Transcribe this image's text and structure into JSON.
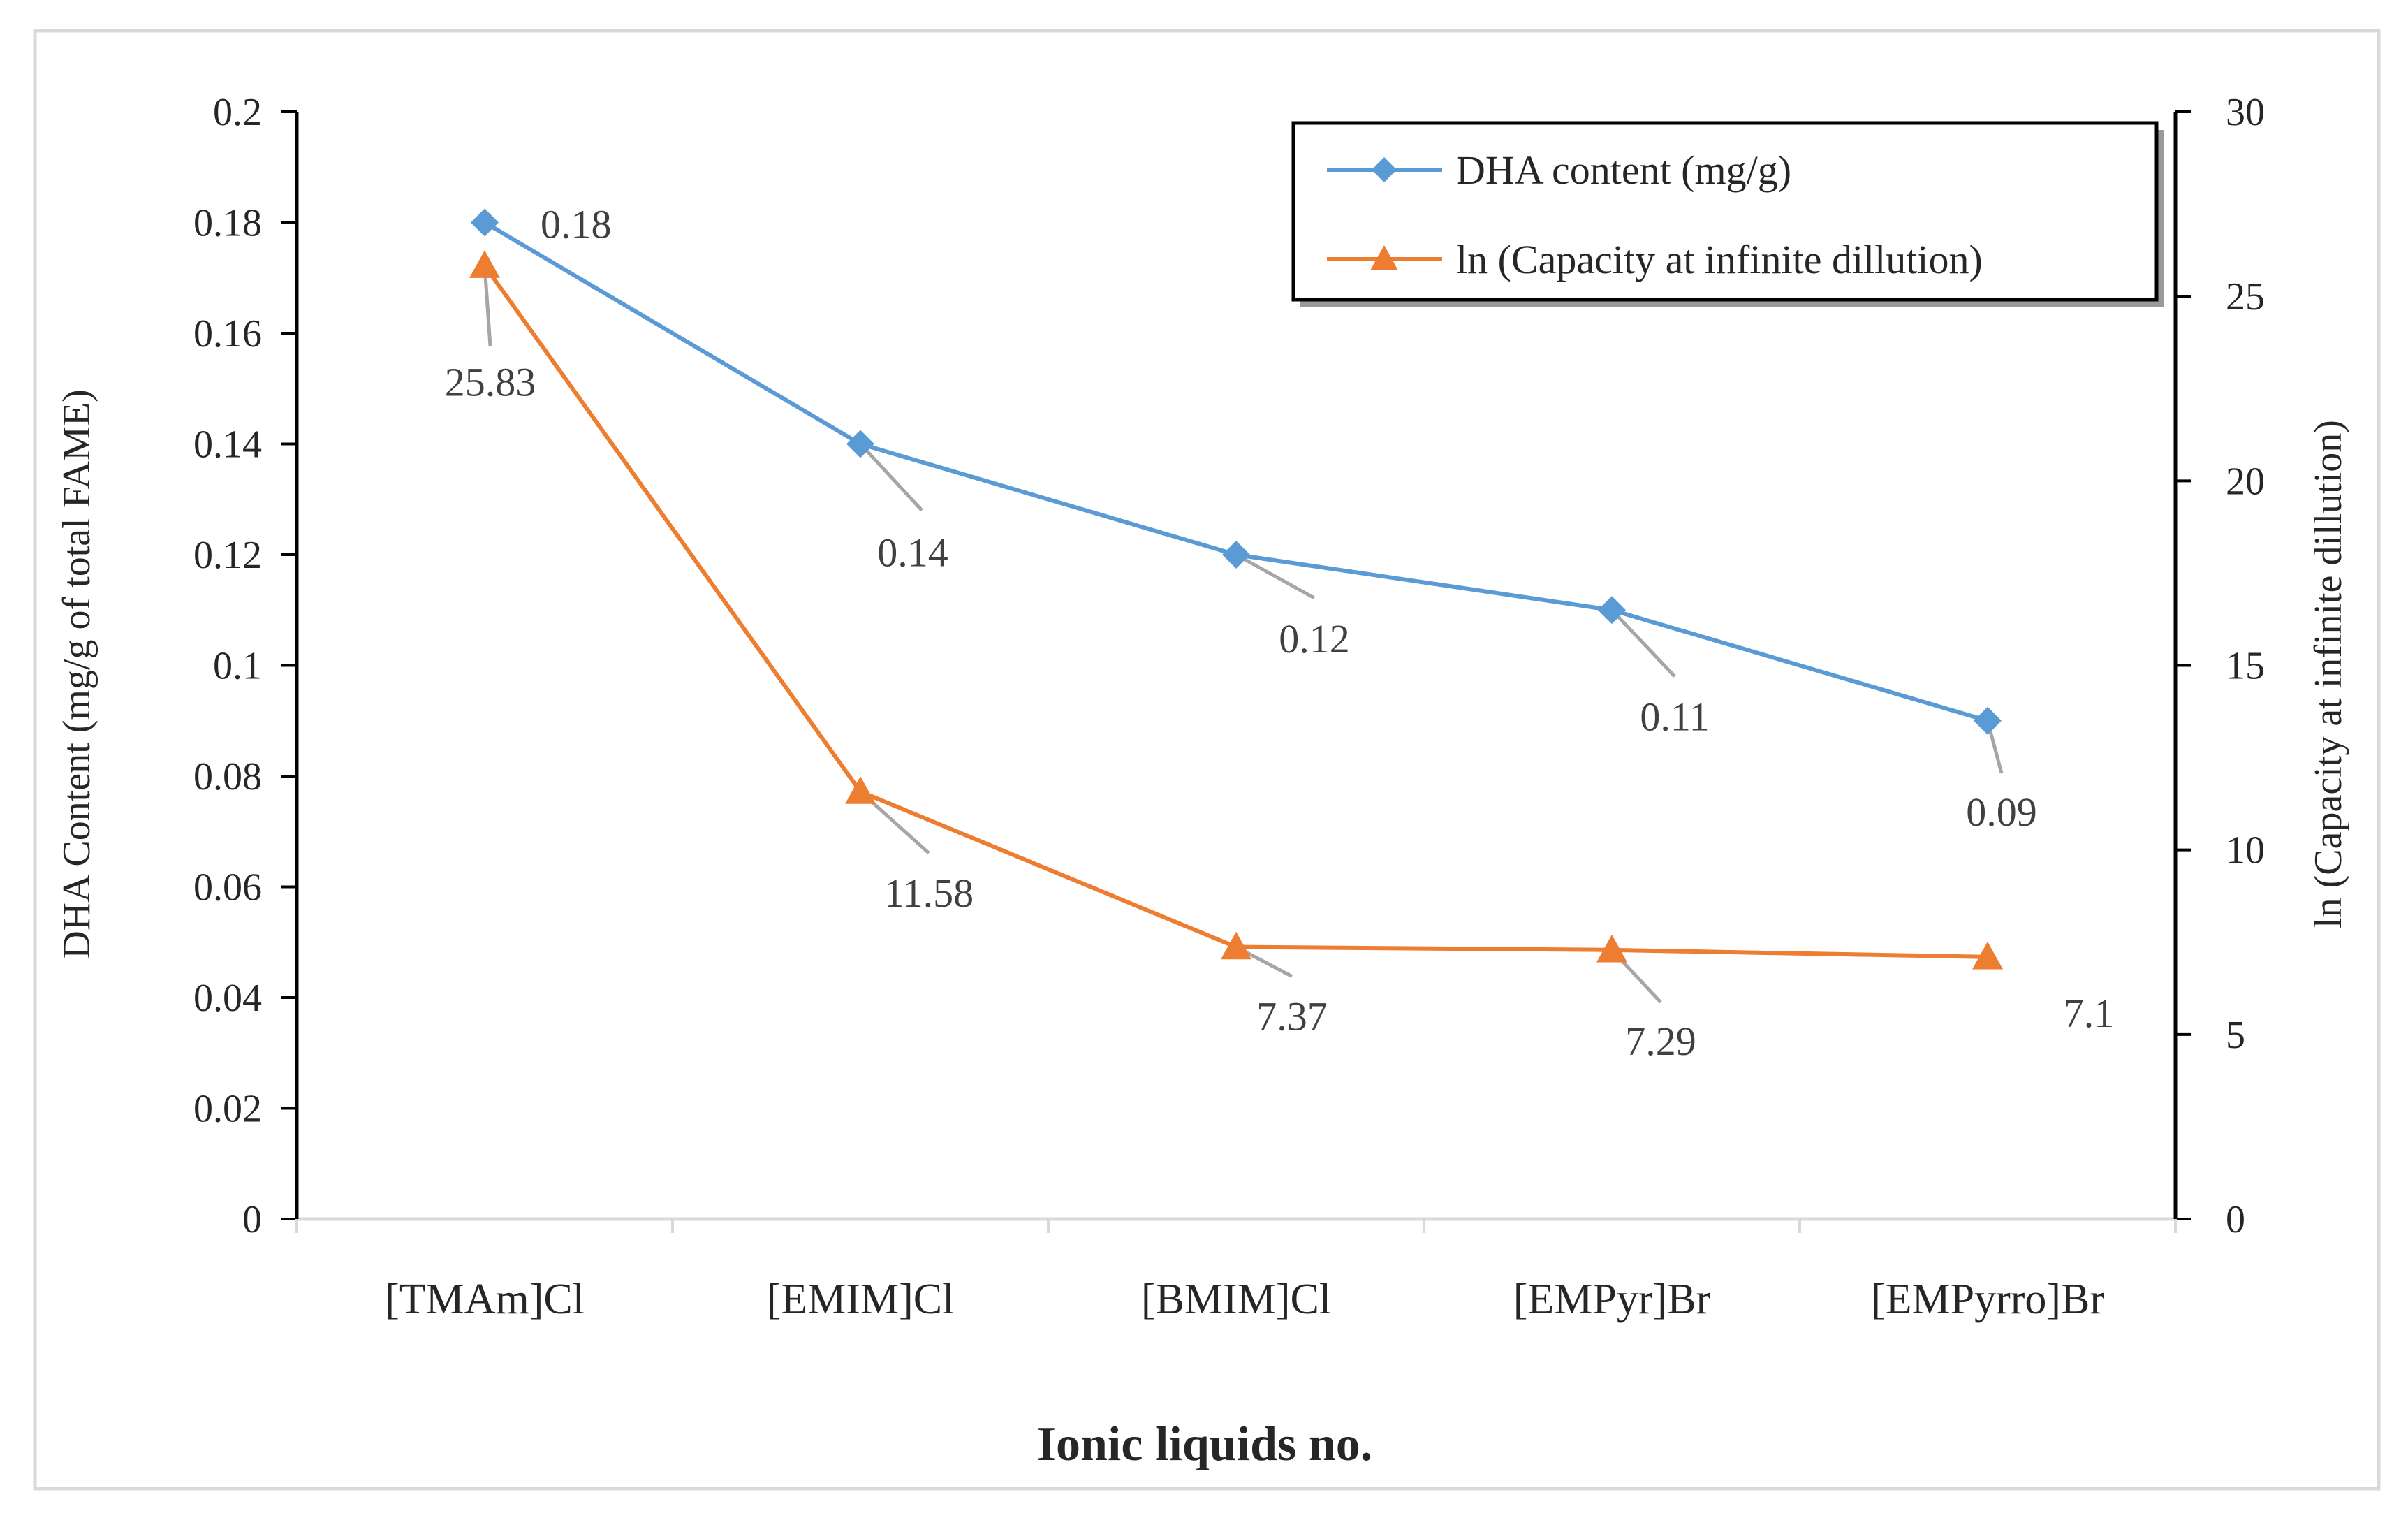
{
  "chart_data": {
    "type": "line",
    "categories": [
      "[TMAm]Cl",
      "[EMIM]Cl",
      "[BMIM]Cl",
      "[EMPyr]Br",
      "[EMPyrro]Br"
    ],
    "series": [
      {
        "name": "DHA content (mg/g)",
        "axis": "left",
        "values": [
          0.18,
          0.14,
          0.12,
          0.11,
          0.09
        ],
        "labels": [
          "0.18",
          "0.14",
          "0.12",
          "0.11",
          "0.09"
        ],
        "marker": "diamond",
        "color": "#5B9BD5"
      },
      {
        "name": "ln (Capacity at infinite dillution)",
        "axis": "right",
        "values": [
          25.83,
          11.58,
          7.37,
          7.29,
          7.1
        ],
        "labels": [
          "25.83",
          "11.58",
          "7.37",
          "7.29",
          "7.1"
        ],
        "marker": "triangle",
        "color": "#ED7D31"
      }
    ],
    "xlabel": "Ionic liquids no.",
    "ylabel": "DHA Content (mg/g of total FAME)",
    "y2label": "ln (Capacity  at infinite dillution)",
    "ylim": [
      0,
      0.2
    ],
    "y2lim": [
      0,
      30
    ],
    "yticks": [
      "0",
      "0.02",
      "0.04",
      "0.06",
      "0.08",
      "0.1",
      "0.12",
      "0.14",
      "0.16",
      "0.18",
      "0.2"
    ],
    "y2ticks": [
      "0",
      "5",
      "10",
      "15",
      "20",
      "25",
      "30"
    ],
    "legend": "top-right",
    "grid": false,
    "leader_color": "#A6A6A6",
    "axis_color": "#000000"
  }
}
